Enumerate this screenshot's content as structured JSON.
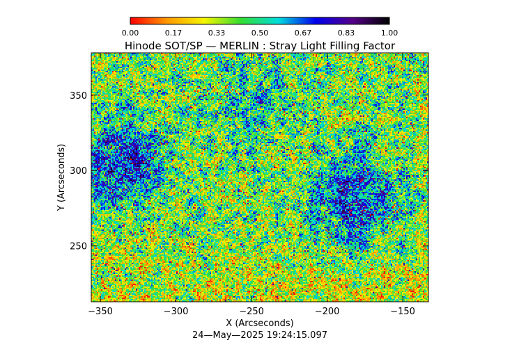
{
  "chart_data": {
    "type": "heatmap",
    "title": "Hinode SOT/SP — MERLIN : Stray Light Filling Factor",
    "xlabel": "X (Arcseconds)",
    "ylabel": "Y (Arcseconds)",
    "timestamp": "24—May—2025 19:24:15.097",
    "xlim": [
      -356,
      -133
    ],
    "ylim": [
      213,
      378
    ],
    "x_ticks": [
      -350,
      -300,
      -250,
      -200,
      -150
    ],
    "y_ticks": [
      250,
      300,
      350
    ],
    "colorbar": {
      "range": [
        0,
        1
      ],
      "tick_labels": [
        "0.00",
        "0.17",
        "0.33",
        "0.50",
        "0.67",
        "0.83",
        "1.00"
      ],
      "colormap": [
        "#ff0000",
        "#ff9900",
        "#f5f500",
        "#33dd33",
        "#00dddd",
        "#0000ee",
        "#550088",
        "#000000"
      ]
    },
    "field_description": {
      "typical_value": 0.4,
      "higher_regions": [
        {
          "x": -333,
          "y": 305,
          "value": 0.72
        },
        {
          "x": -180,
          "y": 280,
          "value": 0.72
        },
        {
          "x": -250,
          "y": 345,
          "value": 0.55
        }
      ]
    }
  }
}
